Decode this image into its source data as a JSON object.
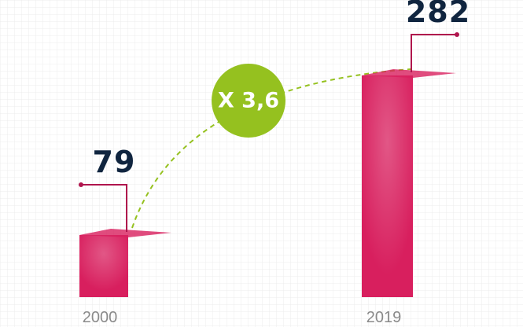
{
  "chart_data": {
    "type": "bar",
    "categories": [
      "2000",
      "2019"
    ],
    "values": [
      79,
      282
    ],
    "color": "#d81f5e",
    "annotation": "X 3,6"
  }
}
